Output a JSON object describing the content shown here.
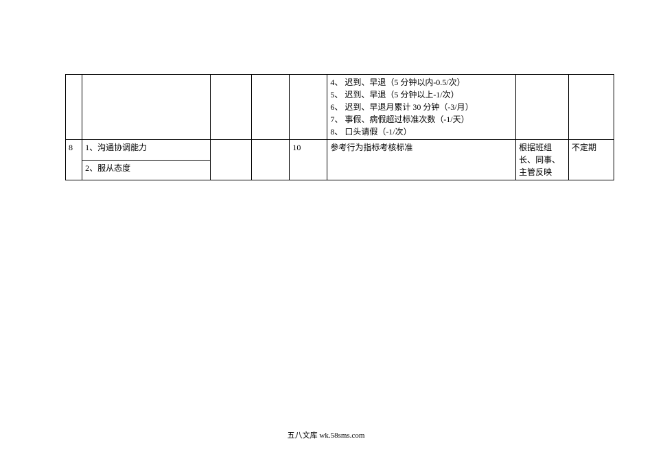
{
  "rows": {
    "continuation": {
      "standards": "4、 迟到、早退（5 分钟以内-0.5/次）\n5、 迟到、早退（5 分钟以上-1/次）\n6、 迟到、早退月累计 30 分钟（-3/月）\n7、 事假、病假超过标准次数（-1/天）\n8、 口头请假（-1/次）"
    },
    "row8": {
      "num": "8",
      "item1": "1、沟通协调能力",
      "item2": "2、服从态度",
      "score": "10",
      "standard": "参考行为指标考核标准",
      "source": "根据班组长、同事、主管反映",
      "freq": "不定期"
    }
  },
  "footer": "五八文库 wk.58sms.com"
}
